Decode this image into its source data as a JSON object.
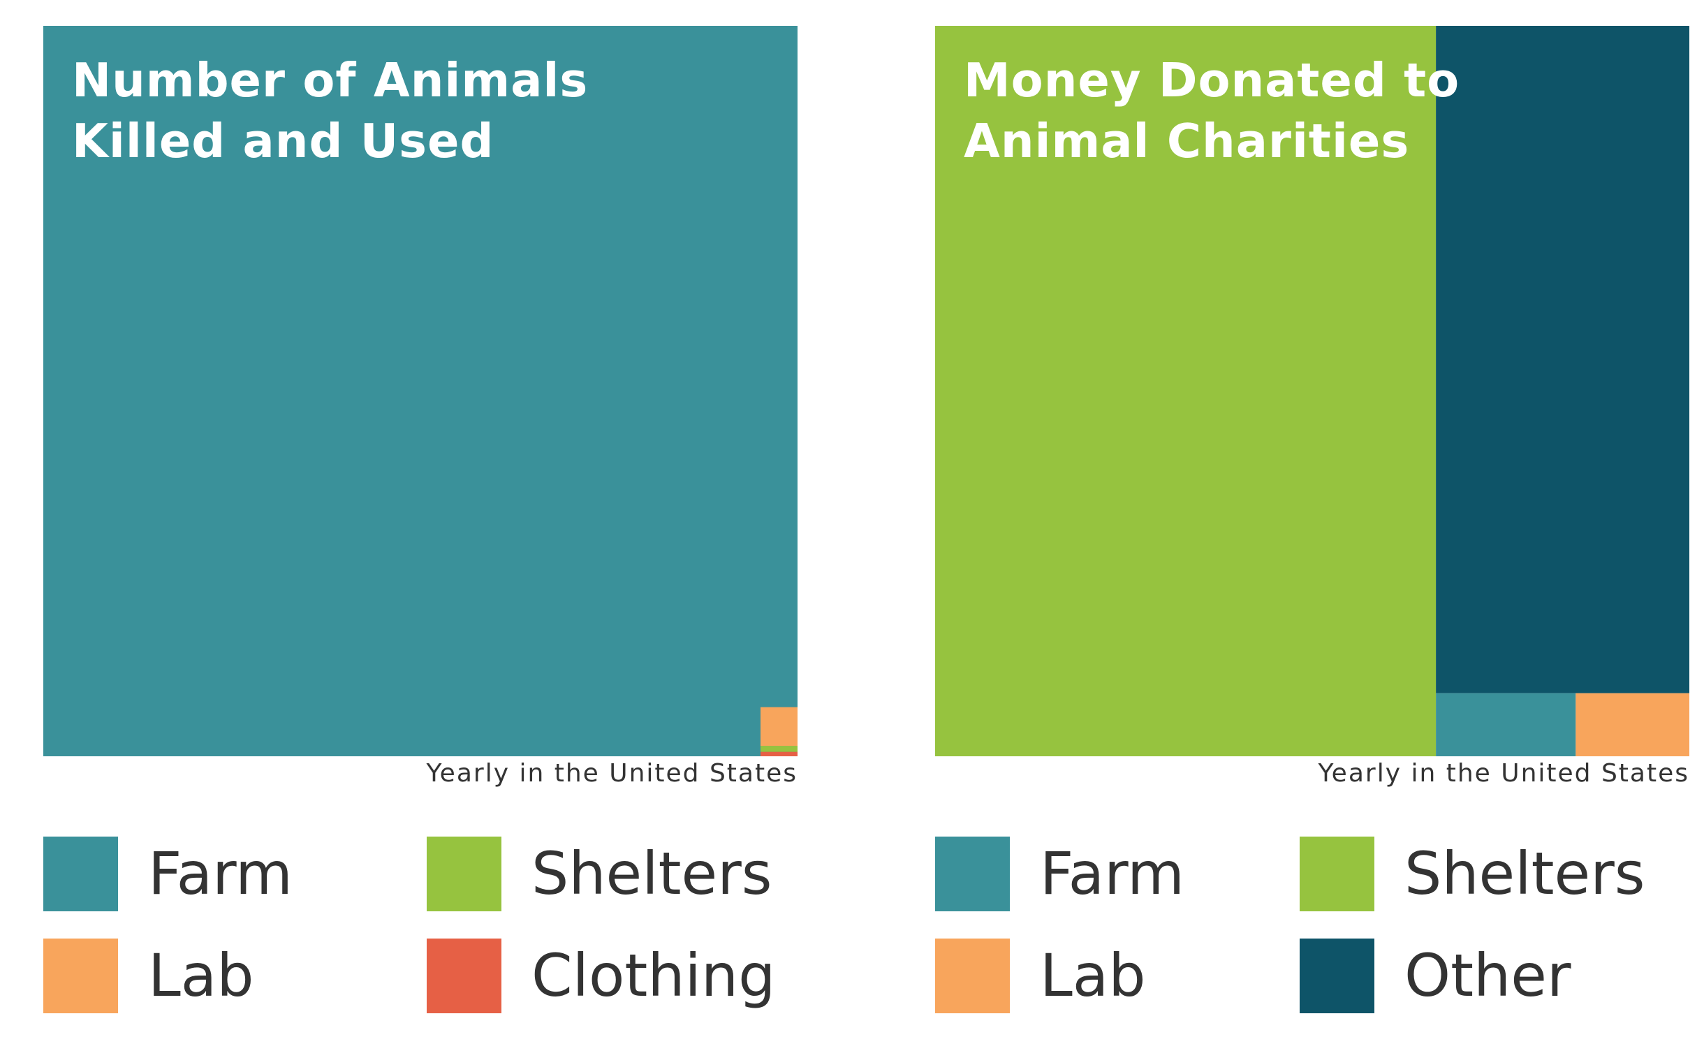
{
  "colors": {
    "farm": "#3a919a",
    "lab": "#f8a55c",
    "shelters": "#96c33f",
    "clothing": "#e66045",
    "other": "#0e5468"
  },
  "chart_data": [
    {
      "type": "treemap",
      "title": "Number of Animals\nKilled and Used",
      "subtitle": "Yearly in the United States",
      "legend": [
        {
          "key": "farm",
          "label": "Farm"
        },
        {
          "key": "shelters",
          "label": "Shelters"
        },
        {
          "key": "lab",
          "label": "Lab"
        },
        {
          "key": "clothing",
          "label": "Clothing"
        }
      ],
      "values_share": [
        {
          "category": "Farm",
          "share": 0.9952
        },
        {
          "category": "Lab",
          "share": 0.0026
        },
        {
          "category": "Shelters",
          "share": 0.0004
        },
        {
          "category": "Clothing",
          "share": 0.0003
        }
      ]
    },
    {
      "type": "treemap",
      "title": "Money Donated to\nAnimal Charities",
      "subtitle": "Yearly in the United States",
      "legend": [
        {
          "key": "farm",
          "label": "Farm"
        },
        {
          "key": "shelters",
          "label": "Shelters"
        },
        {
          "key": "lab",
          "label": "Lab"
        },
        {
          "key": "other",
          "label": "Other"
        }
      ],
      "values_share": [
        {
          "category": "Shelters",
          "share": 0.664
        },
        {
          "category": "Other",
          "share": 0.307
        },
        {
          "category": "Farm",
          "share": 0.016
        },
        {
          "category": "Lab",
          "share": 0.013
        }
      ]
    }
  ]
}
